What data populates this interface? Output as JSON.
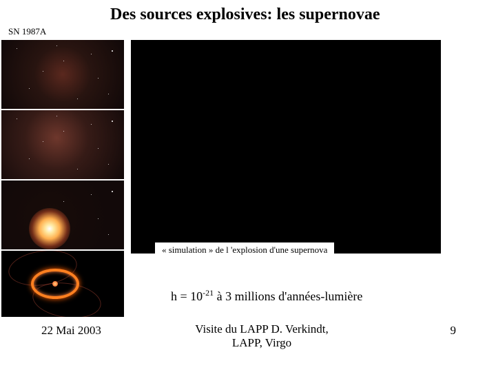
{
  "title": "Des sources explosives: les supernovae",
  "subtitle": "SN 1987A",
  "simulation_caption": "« simulation » de l 'explosion d'une supernova",
  "equation_prefix": "h = 10",
  "equation_exp": "-21",
  "equation_suffix": "  à 3 millions d'années-lumière",
  "footer_date": "22 Mai 2003",
  "footer_center_line1": "Visite du LAPP          D. Verkindt,",
  "footer_center_line2": "LAPP, Virgo",
  "slide_number": "9",
  "colors": {
    "background": "#ffffff",
    "text": "#000000",
    "sim_box": "#000000",
    "ring": "#ff8020"
  }
}
